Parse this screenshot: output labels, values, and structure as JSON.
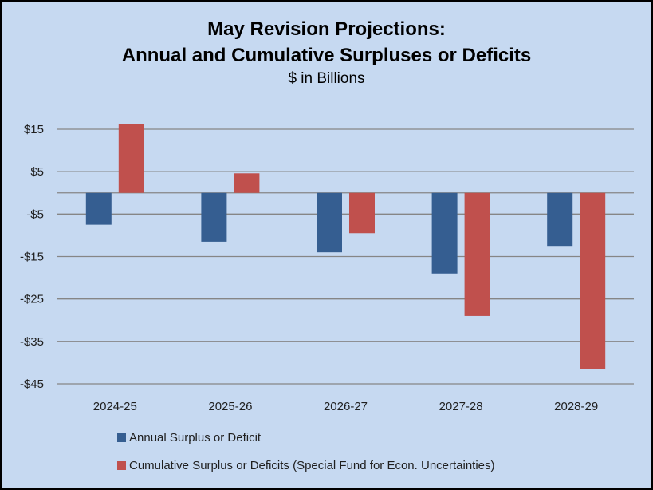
{
  "chart_data": {
    "type": "bar",
    "title_lines": [
      "May Revision Projections:",
      "Annual and Cumulative Surpluses or Deficits"
    ],
    "subtitle": "$ in Billions",
    "categories": [
      "2024-25",
      "2025-26",
      "2026-27",
      "2027-28",
      "2028-29"
    ],
    "series": [
      {
        "name": "Annual Surplus or Deficit",
        "color": "#355e91",
        "values": [
          -7.5,
          -11.5,
          -14,
          -19,
          -12.5
        ]
      },
      {
        "name": "Cumulative Surplus or Deficits (Special Fund for Econ. Uncertainties)",
        "color": "#c0504d",
        "values": [
          16.2,
          4.6,
          -9.5,
          -29,
          -41.5
        ]
      }
    ],
    "yticks": [
      15,
      5,
      -5,
      -15,
      -25,
      -35,
      -45
    ],
    "ytick_labels": [
      "$15",
      "$5",
      "-$5",
      "-$15",
      "-$25",
      "-$35",
      "-$45"
    ],
    "ylim": [
      -45,
      15
    ],
    "grid": true,
    "legend_position": "bottom",
    "xlabel": "",
    "ylabel": ""
  }
}
